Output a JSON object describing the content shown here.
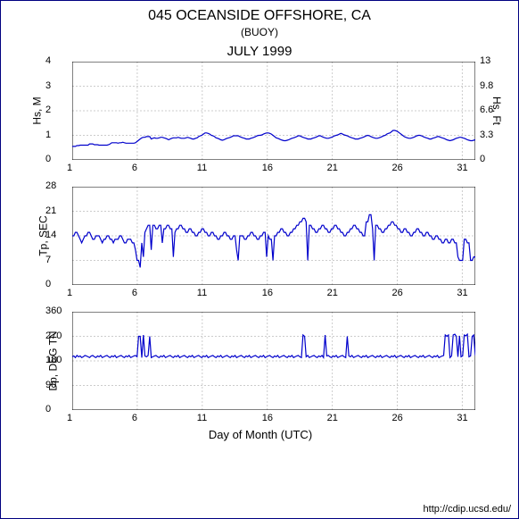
{
  "title_main": "045 OCEANSIDE OFFSHORE, CA",
  "title_sub": "(BUOY)",
  "title_month": "JULY 1999",
  "xlabel": "Day of Month (UTC)",
  "footer": "http://cdip.ucsd.edu/",
  "line_color": "#0000cc",
  "grid_color": "#cccccc",
  "axis_color": "#000000",
  "background": "#ffffff",
  "x_ticks": [
    1,
    6,
    11,
    16,
    21,
    26,
    31
  ],
  "x_min": 1,
  "x_max": 32,
  "charts": [
    {
      "id": "hs",
      "ylabel_left": "Hs, M",
      "ylabel_right": "Hs, Ft",
      "ymin": 0,
      "ymax": 4,
      "yticks_left": [
        0,
        1,
        2,
        3,
        4
      ],
      "yticks_right": [
        0,
        3.3,
        6.6,
        9.8,
        13
      ],
      "data": [
        0.55,
        0.55,
        0.55,
        0.58,
        0.58,
        0.6,
        0.6,
        0.6,
        0.6,
        0.6,
        0.6,
        0.65,
        0.65,
        0.65,
        0.62,
        0.62,
        0.62,
        0.6,
        0.6,
        0.6,
        0.6,
        0.6,
        0.6,
        0.62,
        0.65,
        0.7,
        0.7,
        0.7,
        0.7,
        0.68,
        0.7,
        0.7,
        0.72,
        0.7,
        0.68,
        0.68,
        0.68,
        0.68,
        0.68,
        0.68,
        0.7,
        0.75,
        0.8,
        0.85,
        0.9,
        0.92,
        0.92,
        0.95,
        0.95,
        0.95,
        0.85,
        0.88,
        0.9,
        0.88,
        0.88,
        0.9,
        0.92,
        0.92,
        0.9,
        0.88,
        0.85,
        0.82,
        0.85,
        0.88,
        0.9,
        0.9,
        0.9,
        0.92,
        0.9,
        0.88,
        0.88,
        0.88,
        0.9,
        0.92,
        0.9,
        0.88,
        0.85,
        0.85,
        0.88,
        0.9,
        0.95,
        0.98,
        1.0,
        1.05,
        1.1,
        1.1,
        1.08,
        1.05,
        1.0,
        0.98,
        0.95,
        0.9,
        0.88,
        0.85,
        0.82,
        0.8,
        0.82,
        0.85,
        0.88,
        0.9,
        0.92,
        0.95,
        0.98,
        0.98,
        0.98,
        0.98,
        0.95,
        0.92,
        0.9,
        0.88,
        0.85,
        0.85,
        0.85,
        0.88,
        0.9,
        0.92,
        0.95,
        0.98,
        1.0,
        1.0,
        1.02,
        1.05,
        1.08,
        1.1,
        1.1,
        1.08,
        1.05,
        1.0,
        0.95,
        0.9,
        0.88,
        0.85,
        0.82,
        0.8,
        0.78,
        0.78,
        0.8,
        0.82,
        0.85,
        0.88,
        0.9,
        0.92,
        0.95,
        0.98,
        0.98,
        0.95,
        0.92,
        0.9,
        0.88,
        0.85,
        0.85,
        0.85,
        0.88,
        0.9,
        0.92,
        0.95,
        0.98,
        0.98,
        0.95,
        0.92,
        0.9,
        0.88,
        0.88,
        0.9,
        0.92,
        0.95,
        0.98,
        1.0,
        1.02,
        1.05,
        1.08,
        1.05,
        1.02,
        1.0,
        0.98,
        0.95,
        0.92,
        0.9,
        0.88,
        0.85,
        0.85,
        0.85,
        0.88,
        0.9,
        0.92,
        0.95,
        0.98,
        1.0,
        0.98,
        0.95,
        0.92,
        0.9,
        0.88,
        0.88,
        0.9,
        0.92,
        0.95,
        0.98,
        1.0,
        1.05,
        1.08,
        1.1,
        1.15,
        1.2,
        1.2,
        1.18,
        1.15,
        1.1,
        1.05,
        1.0,
        0.95,
        0.92,
        0.9,
        0.88,
        0.88,
        0.9,
        0.92,
        0.95,
        0.98,
        1.0,
        1.0,
        0.98,
        0.95,
        0.92,
        0.9,
        0.88,
        0.85,
        0.85,
        0.88,
        0.9,
        0.92,
        0.95,
        0.95,
        0.92,
        0.9,
        0.88,
        0.85,
        0.82,
        0.8,
        0.78,
        0.8,
        0.82,
        0.85,
        0.88,
        0.9,
        0.92,
        0.92,
        0.9,
        0.88,
        0.85,
        0.82,
        0.8,
        0.78,
        0.78,
        0.8,
        0.82
      ]
    },
    {
      "id": "tp",
      "ylabel_left": "Tp, SEC",
      "ymin": 0,
      "ymax": 28,
      "yticks_left": [
        0,
        7,
        14,
        21,
        28
      ],
      "data": [
        14,
        14,
        15,
        15,
        14,
        13,
        12,
        13,
        14,
        14,
        15,
        15,
        14,
        13,
        13,
        14,
        14,
        14,
        13,
        12,
        13,
        13,
        14,
        14,
        13,
        13,
        12,
        13,
        13,
        13,
        14,
        14,
        13,
        12,
        12,
        13,
        13,
        13,
        12,
        12,
        10,
        7,
        7,
        5,
        12,
        8,
        15,
        16,
        17,
        17,
        10,
        17,
        17,
        16,
        16,
        17,
        17,
        12,
        16,
        16,
        17,
        17,
        16,
        16,
        8,
        15,
        16,
        16,
        17,
        17,
        16,
        16,
        15,
        15,
        16,
        16,
        15,
        15,
        14,
        14,
        15,
        15,
        16,
        16,
        15,
        15,
        14,
        14,
        15,
        15,
        14,
        14,
        13,
        13,
        14,
        14,
        15,
        15,
        14,
        14,
        13,
        13,
        14,
        14,
        10,
        7,
        14,
        14,
        14,
        13,
        13,
        14,
        14,
        15,
        15,
        14,
        14,
        13,
        13,
        14,
        14,
        15,
        15,
        8,
        14,
        13,
        13,
        7,
        14,
        14,
        15,
        15,
        16,
        16,
        15,
        15,
        14,
        14,
        15,
        15,
        16,
        16,
        17,
        17,
        18,
        18,
        19,
        19,
        18,
        7,
        17,
        17,
        16,
        16,
        15,
        15,
        16,
        16,
        17,
        17,
        16,
        16,
        15,
        15,
        16,
        16,
        17,
        17,
        16,
        16,
        15,
        15,
        14,
        14,
        15,
        15,
        16,
        16,
        17,
        17,
        16,
        16,
        15,
        15,
        14,
        14,
        18,
        18,
        20,
        20,
        16,
        7,
        17,
        17,
        16,
        16,
        15,
        15,
        16,
        16,
        17,
        17,
        18,
        18,
        17,
        17,
        16,
        16,
        15,
        15,
        16,
        16,
        15,
        15,
        14,
        14,
        15,
        15,
        16,
        16,
        15,
        15,
        14,
        14,
        15,
        15,
        14,
        14,
        13,
        13,
        14,
        14,
        13,
        13,
        12,
        12,
        13,
        13,
        12,
        12,
        13,
        13,
        12,
        12,
        8,
        7,
        7,
        7,
        13,
        13,
        12,
        12,
        7,
        7,
        8,
        8
      ]
    },
    {
      "id": "dp",
      "ylabel_left": "Dp, DEG TN",
      "ymin": 0,
      "ymax": 360,
      "yticks_left": [
        0,
        90,
        180,
        270,
        360
      ],
      "data": [
        195,
        198,
        192,
        200,
        195,
        198,
        192,
        195,
        200,
        198,
        195,
        192,
        198,
        200,
        195,
        192,
        198,
        195,
        200,
        192,
        195,
        198,
        200,
        195,
        192,
        198,
        195,
        200,
        192,
        195,
        198,
        200,
        195,
        192,
        198,
        195,
        200,
        192,
        195,
        198,
        200,
        195,
        270,
        270,
        192,
        275,
        198,
        195,
        200,
        270,
        192,
        195,
        198,
        200,
        195,
        192,
        198,
        195,
        200,
        192,
        195,
        198,
        200,
        195,
        192,
        198,
        195,
        200,
        192,
        195,
        198,
        200,
        195,
        192,
        198,
        195,
        200,
        192,
        195,
        198,
        200,
        195,
        192,
        198,
        195,
        200,
        192,
        195,
        198,
        200,
        195,
        192,
        198,
        195,
        200,
        192,
        195,
        198,
        200,
        195,
        192,
        198,
        195,
        200,
        192,
        195,
        198,
        200,
        195,
        192,
        198,
        195,
        200,
        192,
        195,
        198,
        200,
        195,
        192,
        198,
        195,
        200,
        192,
        195,
        198,
        200,
        195,
        192,
        198,
        195,
        200,
        192,
        195,
        198,
        200,
        195,
        192,
        198,
        195,
        200,
        192,
        195,
        198,
        200,
        195,
        192,
        275,
        270,
        195,
        200,
        192,
        195,
        198,
        200,
        195,
        192,
        198,
        195,
        200,
        192,
        275,
        198,
        200,
        195,
        192,
        198,
        195,
        200,
        192,
        195,
        198,
        200,
        195,
        192,
        270,
        198,
        195,
        200,
        192,
        195,
        198,
        200,
        195,
        192,
        198,
        195,
        200,
        192,
        195,
        198,
        200,
        195,
        192,
        198,
        195,
        200,
        192,
        195,
        198,
        200,
        195,
        192,
        198,
        195,
        200,
        192,
        195,
        198,
        200,
        195,
        192,
        198,
        195,
        200,
        192,
        195,
        198,
        200,
        195,
        192,
        198,
        195,
        200,
        192,
        195,
        198,
        200,
        195,
        192,
        198,
        195,
        200,
        192,
        195,
        198,
        200,
        275,
        270,
        275,
        192,
        198,
        275,
        278,
        270,
        195,
        272,
        195,
        198,
        275,
        272,
        278,
        195,
        198,
        270,
        275,
        200
      ]
    }
  ]
}
